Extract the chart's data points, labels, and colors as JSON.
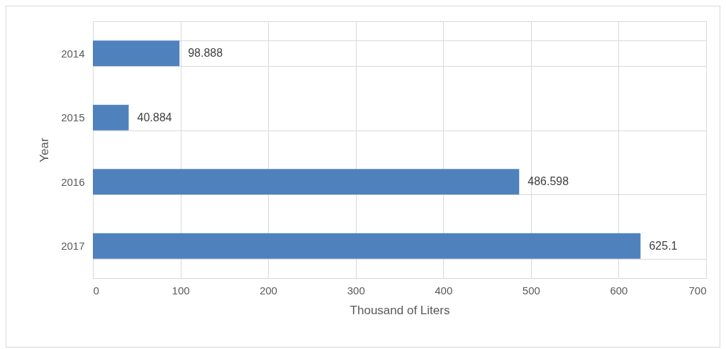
{
  "chart_data": {
    "type": "bar",
    "orientation": "horizontal",
    "xlabel": "Thousand of Liters",
    "ylabel": "Year",
    "categories": [
      "2014",
      "2015",
      "2016",
      "2017"
    ],
    "values": [
      98.888,
      40.884,
      486.598,
      625.1
    ],
    "color": "#4f81bd",
    "xlim": [
      0,
      700
    ],
    "xticks": [
      0,
      100,
      200,
      300,
      400,
      500,
      600,
      700
    ],
    "grid": true,
    "data_labels": true
  }
}
